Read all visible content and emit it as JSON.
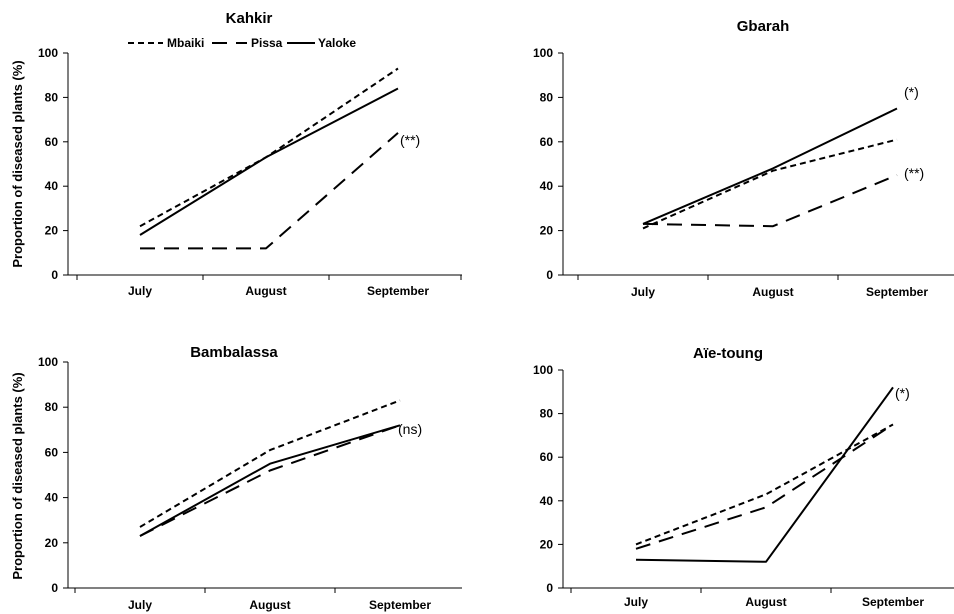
{
  "chart_data": [
    {
      "type": "line",
      "title": "Kahkir",
      "ylabel": "Proportion of diseased plants (%)",
      "xlabel": "",
      "categories": [
        "July",
        "August",
        "September"
      ],
      "ylim": [
        0,
        100
      ],
      "yticks": [
        "0",
        "20",
        "40",
        "60",
        "80",
        "100"
      ],
      "legend_position": "top",
      "series": [
        {
          "name": "Mbaiki",
          "style": "short-dash",
          "values": [
            22,
            53,
            93
          ]
        },
        {
          "name": "Pissa",
          "style": "long-dash",
          "values": [
            12,
            12,
            64
          ]
        },
        {
          "name": "Yaloke",
          "style": "solid",
          "values": [
            18,
            53,
            84
          ]
        }
      ],
      "annotation": "(**)"
    },
    {
      "type": "line",
      "title": "Gbarah",
      "ylabel": "",
      "xlabel": "",
      "categories": [
        "July",
        "August",
        "September"
      ],
      "ylim": [
        0,
        100
      ],
      "yticks": [
        "0",
        "20",
        "40",
        "60",
        "80",
        "100"
      ],
      "series": [
        {
          "style": "short-dash",
          "values": [
            21,
            47,
            61
          ]
        },
        {
          "style": "long-dash",
          "values": [
            23,
            22,
            45
          ]
        },
        {
          "style": "solid",
          "values": [
            23,
            48,
            75
          ]
        }
      ],
      "annotations": [
        "(*)",
        "(**)"
      ]
    },
    {
      "type": "line",
      "title": "Bambalassa",
      "ylabel": "Proportion of diseased plants (%)",
      "xlabel": "",
      "categories": [
        "July",
        "August",
        "September"
      ],
      "ylim": [
        0,
        100
      ],
      "yticks": [
        "0",
        "20",
        "40",
        "60",
        "80",
        "100"
      ],
      "series": [
        {
          "style": "short-dash",
          "values": [
            27,
            61,
            83
          ]
        },
        {
          "style": "long-dash",
          "values": [
            23,
            52,
            72
          ]
        },
        {
          "style": "solid",
          "values": [
            23,
            55,
            72
          ]
        }
      ],
      "annotation": "(ns)"
    },
    {
      "type": "line",
      "title": "Aïe-toung",
      "ylabel": "",
      "xlabel": "",
      "categories": [
        "July",
        "August",
        "September"
      ],
      "ylim": [
        0,
        100
      ],
      "yticks": [
        "0",
        "20",
        "40",
        "60",
        "80",
        "100"
      ],
      "series": [
        {
          "style": "short-dash",
          "values": [
            20,
            43,
            75
          ]
        },
        {
          "style": "long-dash",
          "values": [
            18,
            37,
            75
          ]
        },
        {
          "style": "solid",
          "values": [
            13,
            12,
            92
          ]
        }
      ],
      "annotation": "(*)"
    }
  ]
}
